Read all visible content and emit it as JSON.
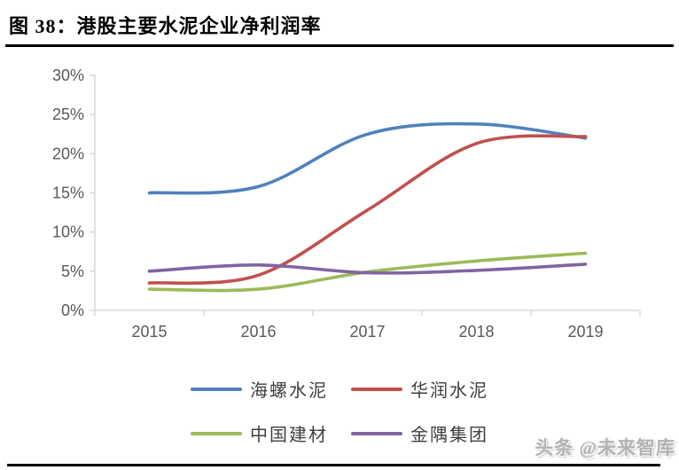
{
  "header": {
    "figure_label": "图 38：",
    "title": "港股主要水泥企业净利润率"
  },
  "chart_data": {
    "type": "line",
    "title": "港股主要水泥企业净利润率",
    "categories": [
      "2015",
      "2016",
      "2017",
      "2018",
      "2019"
    ],
    "series": [
      {
        "name": "海螺水泥",
        "color": "#4F81BD",
        "values": [
          15.0,
          15.8,
          22.5,
          23.8,
          22.0
        ]
      },
      {
        "name": "华润水泥",
        "color": "#C0504D",
        "values": [
          3.5,
          4.5,
          12.8,
          21.3,
          22.2
        ]
      },
      {
        "name": "中国建材",
        "color": "#9BBB59",
        "values": [
          2.7,
          2.7,
          4.9,
          6.3,
          7.3
        ]
      },
      {
        "name": "金隅集团",
        "color": "#8064A2",
        "values": [
          5.0,
          5.8,
          4.8,
          5.1,
          5.9
        ]
      }
    ],
    "ylim": [
      0,
      30
    ],
    "ytick_step": 5,
    "ytick_labels": [
      "0%",
      "5%",
      "10%",
      "15%",
      "20%",
      "25%",
      "30%"
    ],
    "xlabel": "",
    "ylabel": "",
    "grid": false,
    "smooth": true,
    "legend_position": "bottom",
    "axis_color": "#D9D9D9",
    "tick_label_color": "#595959"
  },
  "watermark": {
    "text": "头条 @未来智库"
  }
}
